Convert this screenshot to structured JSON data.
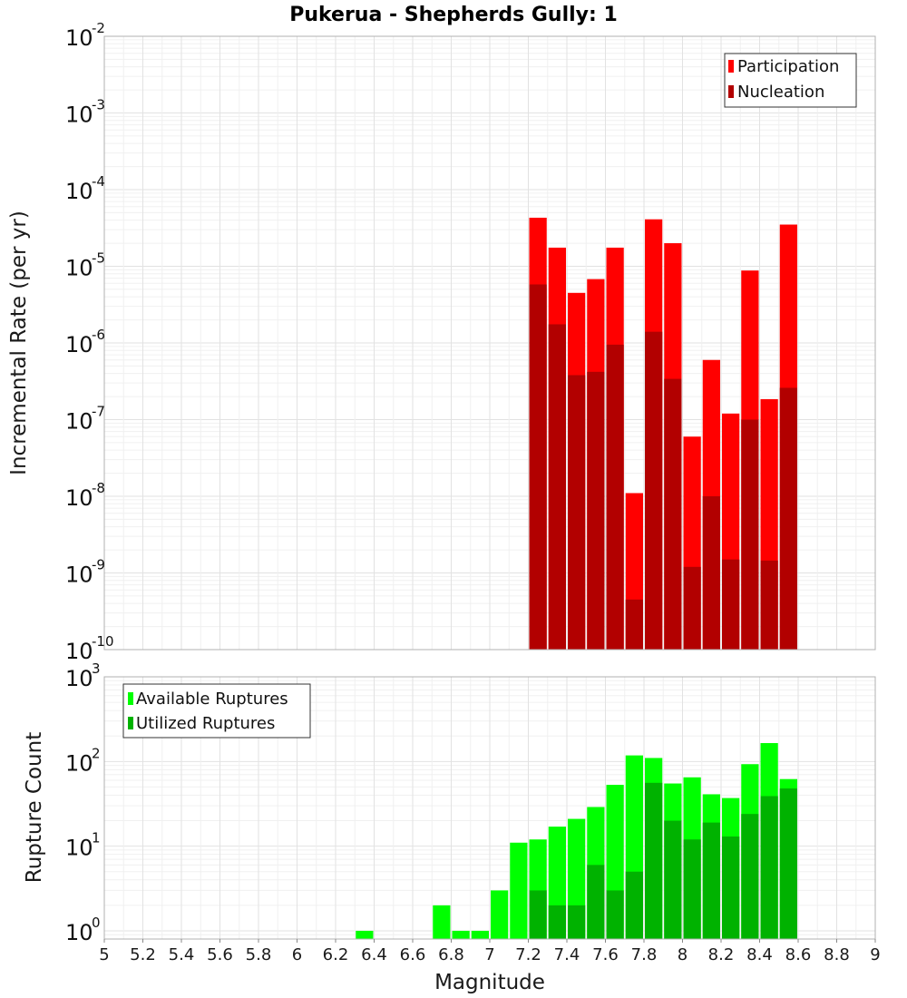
{
  "chart_data": [
    {
      "type": "bar",
      "panel": "rates",
      "title": "Pukerua - Shepherds Gully: 1",
      "xlabel": "",
      "ylabel": "Incremental Rate (per yr)",
      "yscale": "log",
      "ylim": [
        1e-10,
        0.01
      ],
      "ytick_exponents": [
        -2,
        -3,
        -4,
        -5,
        -6,
        -7,
        -8,
        -9,
        -10
      ],
      "xlim": [
        5,
        9
      ],
      "bin_width": 0.1,
      "grid": true,
      "legend_position": "top-right",
      "colors": {
        "participation": "#ff0000",
        "nucleation": "#b20000"
      },
      "x": [
        7.25,
        7.35,
        7.45,
        7.55,
        7.65,
        7.75,
        7.85,
        7.95,
        8.05,
        8.15,
        8.25,
        8.35,
        8.45,
        8.55
      ],
      "series": [
        {
          "name": "Participation",
          "values": [
            4.3e-05,
            1.75e-05,
            4.5e-06,
            6.8e-06,
            1.75e-05,
            1.1e-08,
            4.1e-05,
            2e-05,
            6e-08,
            6e-07,
            1.2e-07,
            8.8e-06,
            1.85e-07,
            3.5e-05
          ]
        },
        {
          "name": "Nucleation",
          "values": [
            5.8e-06,
            1.75e-06,
            3.8e-07,
            4.2e-07,
            9.5e-07,
            4.5e-10,
            1.4e-06,
            3.4e-07,
            1.2e-09,
            1e-08,
            1.5e-09,
            1e-07,
            1.45e-09,
            2.6e-07
          ]
        }
      ]
    },
    {
      "type": "bar",
      "panel": "counts",
      "title": "",
      "xlabel": "Magnitude",
      "ylabel": "Rupture Count",
      "yscale": "log",
      "ylim": [
        0.8,
        1000
      ],
      "ytick_exponents": [
        3,
        2,
        1,
        0
      ],
      "xlim": [
        5,
        9
      ],
      "xticks": [
        "5",
        "5.2",
        "5.4",
        "5.6",
        "5.8",
        "6",
        "6.2",
        "6.4",
        "6.6",
        "6.8",
        "7",
        "7.2",
        "7.4",
        "7.6",
        "7.8",
        "8",
        "8.2",
        "8.4",
        "8.6",
        "8.8",
        "9"
      ],
      "bin_width": 0.1,
      "grid": true,
      "legend_position": "top-left",
      "colors": {
        "available": "#00ff00",
        "utilized": "#00b200"
      },
      "x": [
        6.35,
        6.75,
        6.85,
        6.95,
        7.05,
        7.15,
        7.25,
        7.35,
        7.45,
        7.55,
        7.65,
        7.75,
        7.85,
        7.95,
        8.05,
        8.15,
        8.25,
        8.35,
        8.45,
        8.55
      ],
      "series": [
        {
          "name": "Available Ruptures",
          "values": [
            1,
            2,
            1,
            1,
            3,
            11,
            12,
            17,
            21,
            29,
            53,
            118,
            110,
            55,
            65,
            41,
            37,
            93,
            165,
            62
          ]
        },
        {
          "name": "Utilized Ruptures",
          "values": [
            0,
            0,
            0,
            0,
            0,
            0,
            3,
            2,
            2,
            6,
            3,
            5,
            56,
            20,
            12,
            19,
            13,
            24,
            39,
            48
          ]
        }
      ]
    }
  ]
}
